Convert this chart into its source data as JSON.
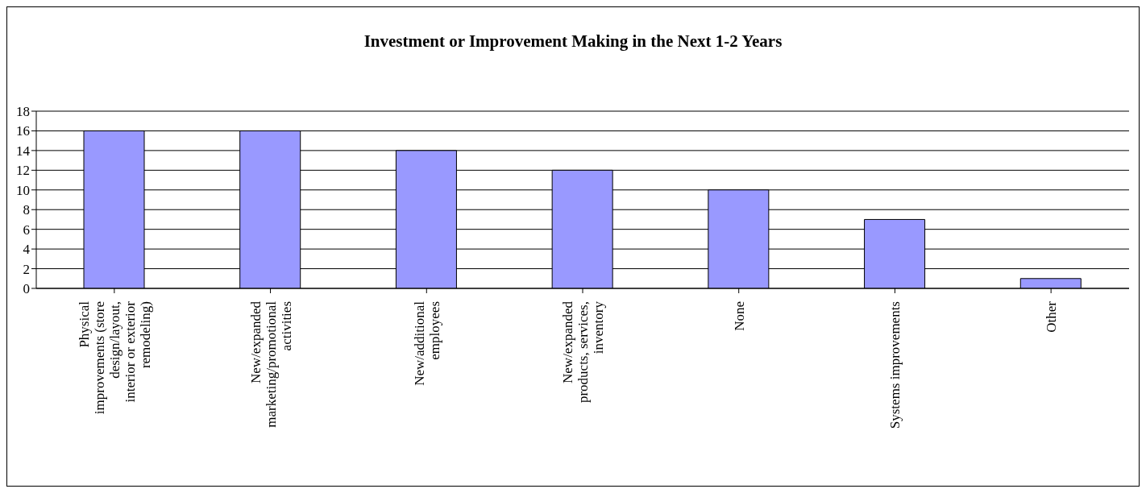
{
  "chart_data": {
    "type": "bar",
    "title": "Investment or Improvement Making in the Next 1-2 Years",
    "categories": [
      "Physical improvements (store design/layout, interior or exterior remodeling)",
      "New/expanded marketing/promotional activities",
      "New/additional employees",
      "New/expanded products, services, inventory",
      "None",
      "Systems improvements",
      "Other"
    ],
    "values": [
      16,
      16,
      14,
      12,
      10,
      7,
      1
    ],
    "color": "#9999ff",
    "ylim": [
      0,
      18
    ],
    "yticks": [
      0,
      2,
      4,
      6,
      8,
      10,
      12,
      14,
      16,
      18
    ],
    "grid": "y"
  }
}
